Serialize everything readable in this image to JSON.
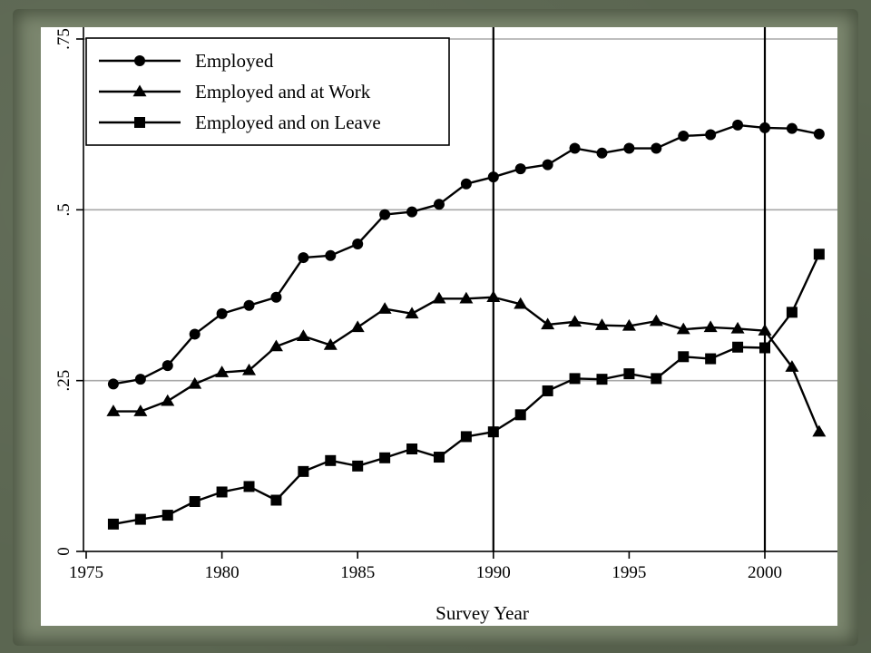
{
  "chart_data": {
    "type": "line",
    "xlabel": "Survey Year",
    "ylabel": "",
    "xlim": [
      1975,
      2002.6
    ],
    "ylim": [
      0,
      0.75
    ],
    "xticks": [
      "1975",
      "1980",
      "1985",
      "1990",
      "1995",
      "2000"
    ],
    "xtick_values": [
      1975,
      1980,
      1985,
      1990,
      1995,
      2000
    ],
    "yticks": [
      "0",
      ".25",
      ".5",
      ".75"
    ],
    "ytick_values": [
      0,
      0.25,
      0.5,
      0.75
    ],
    "grid": "horizontal",
    "reference_lines_x": [
      1990,
      2000
    ],
    "legend_position": "top-left",
    "x": [
      1976,
      1977,
      1978,
      1979,
      1980,
      1981,
      1982,
      1983,
      1984,
      1985,
      1986,
      1987,
      1988,
      1989,
      1990,
      1991,
      1992,
      1993,
      1994,
      1995,
      1996,
      1997,
      1998,
      1999,
      2000,
      2001,
      2002
    ],
    "series": [
      {
        "name": "Employed",
        "marker": "circle",
        "values": [
          0.245,
          0.252,
          0.272,
          0.318,
          0.348,
          0.36,
          0.372,
          0.43,
          0.433,
          0.45,
          0.493,
          0.497,
          0.508,
          0.538,
          0.548,
          0.56,
          0.566,
          0.59,
          0.583,
          0.59,
          0.59,
          0.608,
          0.61,
          0.624,
          0.62,
          0.619,
          0.611
        ]
      },
      {
        "name": "Employed and at Work",
        "marker": "triangle",
        "values": [
          0.205,
          0.205,
          0.22,
          0.245,
          0.262,
          0.265,
          0.3,
          0.315,
          0.302,
          0.328,
          0.355,
          0.348,
          0.37,
          0.37,
          0.372,
          0.362,
          0.332,
          0.336,
          0.331,
          0.33,
          0.337,
          0.325,
          0.328,
          0.326,
          0.323,
          0.27,
          0.175
        ]
      },
      {
        "name": "Employed and on Leave",
        "marker": "square",
        "values": [
          0.04,
          0.047,
          0.053,
          0.073,
          0.087,
          0.095,
          0.075,
          0.117,
          0.133,
          0.125,
          0.137,
          0.15,
          0.138,
          0.168,
          0.175,
          0.2,
          0.235,
          0.253,
          0.252,
          0.26,
          0.253,
          0.285,
          0.282,
          0.299,
          0.298,
          0.35,
          0.435
        ]
      }
    ]
  }
}
